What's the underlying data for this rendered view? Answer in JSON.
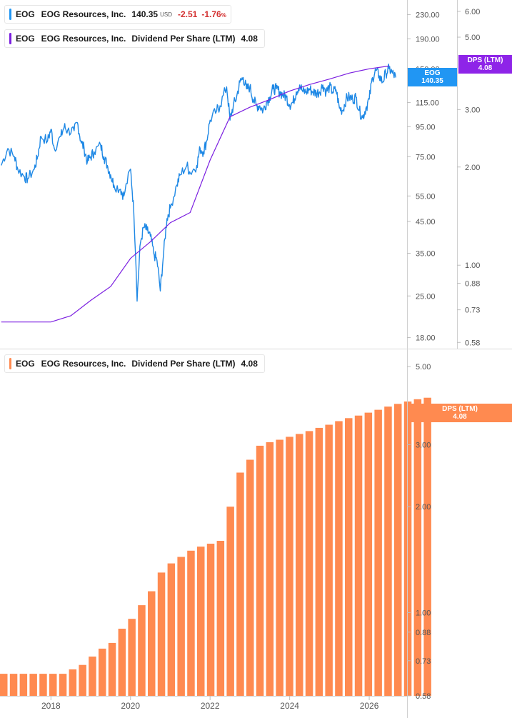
{
  "legends": {
    "price": {
      "ticker": "EOG",
      "name": "EOG Resources, Inc.",
      "value": "140.35",
      "unit": "USD",
      "change": "-2.51",
      "change_pct": "-1.76",
      "pct_sign": "%",
      "color": "#2196f3"
    },
    "dps_top": {
      "ticker": "EOG",
      "name": "EOG Resources, Inc.",
      "metric": "Dividend Per Share (LTM)",
      "value": "4.08",
      "color": "#7b1fe0"
    },
    "dps_bottom": {
      "ticker": "EOG",
      "name": "EOG Resources, Inc.",
      "metric": "Dividend Per Share (LTM)",
      "value": "4.08",
      "color": "#ff8a50"
    }
  },
  "tags": {
    "price": {
      "label": "EOG",
      "value": "140.35",
      "color": "#2196f3"
    },
    "dps_top": {
      "label": "DPS (LTM)",
      "value": "4.08",
      "color": "#8e24e8"
    },
    "dps_bottom": {
      "label": "DPS (LTM)",
      "value": "4.08",
      "color": "#ff8a50"
    }
  },
  "chart_data": [
    {
      "type": "line",
      "scale": "log",
      "price_axis_ticks": [
        "230.00",
        "190.00",
        "150.00",
        "115.00",
        "95.00",
        "75.00",
        "55.00",
        "45.00",
        "35.00",
        "25.00",
        "18.00"
      ],
      "dps_axis_ticks": [
        "6.00",
        "5.00",
        "3.00",
        "2.00",
        "1.00",
        "0.88",
        "0.73",
        "0.58"
      ],
      "series": [
        {
          "name": "EOG Resources, Inc.",
          "color": "#1e88e5",
          "points": [
            [
              "2016-10",
              70
            ],
            [
              "2016-12",
              80
            ],
            [
              "2017-02",
              75
            ],
            [
              "2017-03",
              68
            ],
            [
              "2017-05",
              64
            ],
            [
              "2017-06",
              63
            ],
            [
              "2017-08",
              68
            ],
            [
              "2017-09",
              75
            ],
            [
              "2017-10",
              88
            ],
            [
              "2017-12",
              85
            ],
            [
              "2018-01",
              93
            ],
            [
              "2018-02",
              80
            ],
            [
              "2018-04",
              88
            ],
            [
              "2018-05",
              95
            ],
            [
              "2018-06",
              92
            ],
            [
              "2018-08",
              92
            ],
            [
              "2018-09",
              98
            ],
            [
              "2018-10",
              85
            ],
            [
              "2018-11",
              80
            ],
            [
              "2018-12",
              72
            ],
            [
              "2019-01",
              75
            ],
            [
              "2019-02",
              78
            ],
            [
              "2019-04",
              82
            ],
            [
              "2019-05",
              75
            ],
            [
              "2019-06",
              70
            ],
            [
              "2019-07",
              65
            ],
            [
              "2019-08",
              60
            ],
            [
              "2019-10",
              58
            ],
            [
              "2019-11",
              55
            ],
            [
              "2020-01",
              68
            ],
            [
              "2020-02",
              48
            ],
            [
              "2020-03",
              24
            ],
            [
              "2020-04",
              38
            ],
            [
              "2020-05",
              43
            ],
            [
              "2020-06",
              42
            ],
            [
              "2020-07",
              40
            ],
            [
              "2020-08",
              35
            ],
            [
              "2020-09",
              33
            ],
            [
              "2020-10",
              26
            ],
            [
              "2020-11",
              35
            ],
            [
              "2020-12",
              46
            ],
            [
              "2021-01",
              50
            ],
            [
              "2021-03",
              60
            ],
            [
              "2021-04",
              65
            ],
            [
              "2021-06",
              70
            ],
            [
              "2021-07",
              66
            ],
            [
              "2021-09",
              70
            ],
            [
              "2021-10",
              80
            ],
            [
              "2021-11",
              78
            ],
            [
              "2021-12",
              85
            ],
            [
              "2022-01",
              100
            ],
            [
              "2022-03",
              108
            ],
            [
              "2022-04",
              112
            ],
            [
              "2022-06",
              130
            ],
            [
              "2022-07",
              100
            ],
            [
              "2022-08",
              112
            ],
            [
              "2022-09",
              120
            ],
            [
              "2022-10",
              135
            ],
            [
              "2022-11",
              140
            ],
            [
              "2022-12",
              128
            ],
            [
              "2023-01",
              130
            ],
            [
              "2023-02",
              118
            ],
            [
              "2023-03",
              112
            ],
            [
              "2023-04",
              112
            ],
            [
              "2023-05",
              108
            ],
            [
              "2023-06",
              115
            ],
            [
              "2023-07",
              120
            ],
            [
              "2023-08",
              128
            ],
            [
              "2023-09",
              128
            ],
            [
              "2023-10",
              125
            ],
            [
              "2023-11",
              122
            ],
            [
              "2023-12",
              120
            ],
            [
              "2024-01",
              113
            ],
            [
              "2024-02",
              115
            ],
            [
              "2024-03",
              125
            ],
            [
              "2024-04",
              132
            ],
            [
              "2024-05",
              125
            ],
            [
              "2024-06",
              125
            ],
            [
              "2024-07",
              128
            ],
            [
              "2024-08",
              125
            ],
            [
              "2024-09",
              124
            ],
            [
              "2024-10",
              125
            ],
            [
              "2024-11",
              132
            ],
            [
              "2024-12",
              125
            ],
            [
              "2025-01",
              130
            ],
            [
              "2025-02",
              125
            ],
            [
              "2025-03",
              127
            ],
            [
              "2025-04",
              110
            ],
            [
              "2025-05",
              108
            ],
            [
              "2025-06",
              118
            ],
            [
              "2025-07",
              120
            ],
            [
              "2025-08",
              118
            ],
            [
              "2025-09",
              120
            ],
            [
              "2025-10",
              108
            ],
            [
              "2025-11",
              102
            ],
            [
              "2025-12",
              110
            ],
            [
              "2026-01",
              118
            ],
            [
              "2026-02",
              140
            ],
            [
              "2026-03",
              148
            ],
            [
              "2026-04",
              142
            ],
            [
              "2026-05",
              135
            ],
            [
              "2026-06",
              145
            ],
            [
              "2026-07",
              150
            ],
            [
              "2026-08",
              145
            ],
            [
              "2026-09",
              140
            ]
          ]
        },
        {
          "name": "Dividend Per Share (LTM)",
          "color": "#7b1fe0",
          "points": [
            [
              "2016-10",
              0.67
            ],
            [
              "2018-01",
              0.67
            ],
            [
              "2018-07",
              0.7
            ],
            [
              "2019-01",
              0.78
            ],
            [
              "2019-07",
              0.86
            ],
            [
              "2020-01",
              1.05
            ],
            [
              "2020-07",
              1.18
            ],
            [
              "2021-01",
              1.35
            ],
            [
              "2021-07",
              1.45
            ],
            [
              "2022-01",
              2.1
            ],
            [
              "2022-07",
              2.85
            ],
            [
              "2023-01",
              3.05
            ],
            [
              "2023-07",
              3.22
            ],
            [
              "2024-01",
              3.42
            ],
            [
              "2024-07",
              3.58
            ],
            [
              "2025-01",
              3.72
            ],
            [
              "2025-07",
              3.88
            ],
            [
              "2026-01",
              4.0
            ],
            [
              "2026-07",
              4.08
            ]
          ]
        }
      ]
    },
    {
      "type": "bar",
      "scale": "log",
      "axis_ticks": [
        "5.00",
        "3.00",
        "2.00",
        "1.00",
        "0.88",
        "0.73",
        "0.58"
      ],
      "x_ticks": [
        "2018",
        "2020",
        "2022",
        "2024",
        "2026"
      ],
      "series": [
        {
          "name": "Dividend Per Share (LTM)",
          "color": "#ff8a50",
          "values": [
            0.67,
            0.67,
            0.67,
            0.67,
            0.67,
            0.67,
            0.67,
            0.69,
            0.71,
            0.75,
            0.79,
            0.82,
            0.9,
            0.96,
            1.05,
            1.15,
            1.3,
            1.38,
            1.44,
            1.5,
            1.54,
            1.57,
            1.6,
            2.0,
            2.5,
            2.72,
            2.98,
            3.05,
            3.1,
            3.16,
            3.22,
            3.28,
            3.35,
            3.42,
            3.5,
            3.57,
            3.63,
            3.7,
            3.77,
            3.85,
            3.92,
            3.98,
            4.04,
            4.08
          ]
        }
      ],
      "ylim": [
        0.58,
        5.0
      ]
    }
  ]
}
